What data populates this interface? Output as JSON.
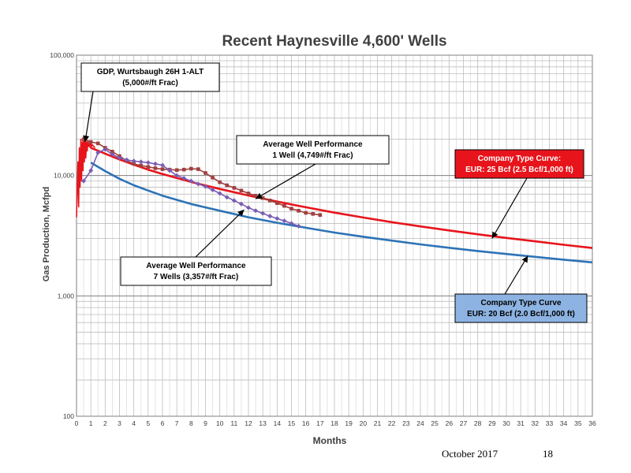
{
  "slide": {
    "footer_date": "October 2017",
    "page_number": "18"
  },
  "chart_data": {
    "type": "line",
    "title": "Recent Haynesville 4,600' Wells",
    "xlabel": "Months",
    "ylabel": "Gas Production, Mcfpd",
    "y_scale": "log",
    "xlim": [
      0,
      36
    ],
    "ylim": [
      100,
      100000
    ],
    "x_ticks": [
      "0",
      "1",
      "2",
      "3",
      "4",
      "5",
      "6",
      "7",
      "8",
      "9",
      "10",
      "11",
      "12",
      "13",
      "14",
      "15",
      "16",
      "17",
      "18",
      "19",
      "20",
      "21",
      "22",
      "23",
      "24",
      "25",
      "26",
      "27",
      "28",
      "29",
      "30",
      "31",
      "32",
      "33",
      "34",
      "35",
      "36"
    ],
    "y_ticks": [
      {
        "value": 100,
        "label": "100"
      },
      {
        "value": 1000,
        "label": "1,000"
      },
      {
        "value": 10000,
        "label": "10,000"
      },
      {
        "value": 100000,
        "label": "100,000"
      }
    ],
    "grid": true,
    "series": [
      {
        "name": "Company Type Curve: EUR: 25 Bcf",
        "color": "#e8141b",
        "style": "line",
        "x": [
          1,
          2,
          3,
          4,
          5,
          6,
          8,
          10,
          12,
          14,
          16,
          18,
          20,
          22,
          24,
          26,
          28,
          30,
          32,
          34,
          36
        ],
        "y": [
          17000,
          15200,
          13600,
          12300,
          11200,
          10300,
          8850,
          7730,
          6820,
          6080,
          5450,
          4920,
          4480,
          4100,
          3780,
          3500,
          3250,
          3030,
          2840,
          2660,
          2500
        ]
      },
      {
        "name": "Company Type Curve: EUR: 20 Bcf",
        "color": "#2d73b6",
        "style": "line",
        "x": [
          1,
          2,
          3,
          4,
          5,
          6,
          8,
          10,
          12,
          14,
          16,
          18,
          20,
          22,
          24,
          26,
          28,
          30,
          32,
          34,
          36
        ],
        "y": [
          12800,
          10900,
          9400,
          8300,
          7500,
          6800,
          5800,
          5100,
          4500,
          4050,
          3680,
          3360,
          3100,
          2880,
          2680,
          2510,
          2360,
          2230,
          2110,
          2000,
          1900
        ]
      },
      {
        "name": "Average Well Performance 1 Well",
        "color": "#a0403f",
        "style": "line-square",
        "x": [
          0.5,
          1,
          1.5,
          2,
          2.5,
          3,
          3.5,
          4,
          4.5,
          5,
          5.5,
          6,
          6.5,
          7,
          7.5,
          8,
          8.5,
          9,
          9.5,
          10,
          10.5,
          11,
          11.5,
          12,
          12.5,
          13,
          13.5,
          14,
          14.5,
          15,
          15.5,
          16,
          16.5,
          17
        ],
        "y": [
          20000,
          19000,
          18500,
          17000,
          15800,
          14500,
          13300,
          12500,
          12100,
          11800,
          11500,
          11300,
          11200,
          11100,
          11200,
          11400,
          11300,
          10500,
          9600,
          8800,
          8300,
          7900,
          7500,
          7100,
          6800,
          6500,
          6200,
          5900,
          5600,
          5300,
          5100,
          4900,
          4800,
          4700
        ]
      },
      {
        "name": "Average Well Performance 7 Wells",
        "color": "#7a5db3",
        "style": "line-diamond",
        "x": [
          0.5,
          1,
          1.5,
          2,
          2.5,
          3,
          3.5,
          4,
          4.5,
          5,
          5.5,
          6,
          6.5,
          7,
          7.5,
          8,
          8.5,
          9,
          9.5,
          10,
          10.5,
          11,
          11.5,
          12,
          12.5,
          13,
          13.5,
          14,
          14.5,
          15,
          15.5
        ],
        "y": [
          9000,
          11000,
          15500,
          16500,
          15000,
          14000,
          13500,
          13200,
          13000,
          12800,
          12500,
          12200,
          11000,
          10000,
          9500,
          9000,
          8500,
          8100,
          7600,
          7100,
          6600,
          6200,
          5800,
          5400,
          5100,
          4850,
          4600,
          4400,
          4200,
          4000,
          3800
        ]
      },
      {
        "name": "GDP, Wurtsbaugh 26H 1-ALT",
        "color": "#e8141b",
        "style": "spiky",
        "x": [
          0.0,
          0.1,
          0.15,
          0.2,
          0.25,
          0.3,
          0.35,
          0.4,
          0.45,
          0.5,
          0.55,
          0.6,
          0.65,
          0.7,
          0.75,
          0.8,
          0.85,
          0.9,
          0.95,
          1.0,
          1.05,
          1.1,
          1.2,
          1.3
        ],
        "y": [
          4500,
          13000,
          5500,
          17000,
          8000,
          20000,
          9000,
          19000,
          11000,
          21000,
          13000,
          20000,
          14000,
          19000,
          16000,
          19500,
          17500,
          18500,
          17000,
          18500,
          17500,
          18000,
          17500,
          17000
        ]
      }
    ],
    "annotations": [
      {
        "name": "gdp",
        "lines": [
          "GDP, Wurtsbaugh 26H 1-ALT",
          "(5,000#/ft Frac)"
        ],
        "box_fill": "#ffffff",
        "text_color": "#000000",
        "target": [
          0.6,
          19000
        ]
      },
      {
        "name": "avg1",
        "lines": [
          "Average Well Performance",
          "1 Well (4,749#/ft Frac)"
        ],
        "box_fill": "#ffffff",
        "text_color": "#000000",
        "target": [
          12.5,
          6400
        ]
      },
      {
        "name": "avg7",
        "lines": [
          "Average Well Performance",
          "7 Wells (3,357#/ft Frac)"
        ],
        "box_fill": "#ffffff",
        "text_color": "#000000",
        "target": [
          11.7,
          5200
        ]
      },
      {
        "name": "tc25",
        "lines": [
          "Company Type Curve:",
          "EUR: 25 Bcf (2.5 Bcf/1,000 ft)"
        ],
        "box_fill": "#e8141b",
        "text_color": "#ffffff",
        "target": [
          29,
          3000
        ]
      },
      {
        "name": "tc20",
        "lines": [
          "Company Type Curve",
          "EUR: 20 Bcf (2.0 Bcf/1,000 ft)"
        ],
        "box_fill": "#8db3e2",
        "text_color": "#000000",
        "target": [
          31.5,
          2150
        ]
      }
    ]
  }
}
